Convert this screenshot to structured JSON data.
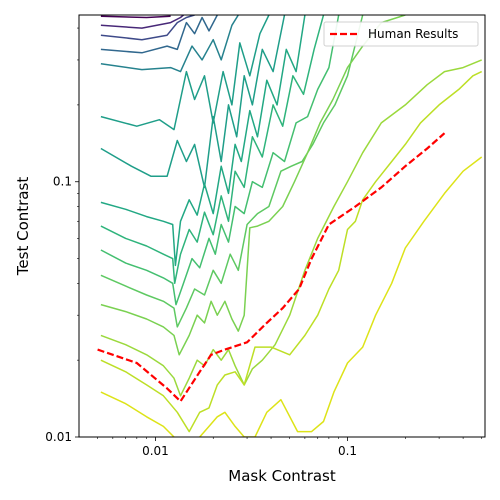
{
  "chart_data": {
    "type": "line",
    "xlabel": "Mask Contrast",
    "ylabel": "Test Contrast",
    "xscale": "log",
    "yscale": "log",
    "xlim": [
      0.004,
      0.52
    ],
    "ylim": [
      0.01,
      0.45
    ],
    "xticks": [
      {
        "value": 0.01,
        "label": "0.01"
      },
      {
        "value": 0.1,
        "label": "0.1"
      }
    ],
    "yticks": [
      {
        "value": 0.01,
        "label": "0.01"
      },
      {
        "value": 0.1,
        "label": "0.1"
      }
    ],
    "legend_position": "top-right",
    "grid": false,
    "series": [
      {
        "name": "Human Results",
        "style": "dashed",
        "color": "#ff0000",
        "x": [
          0.005,
          0.008,
          0.0115,
          0.0135,
          0.017,
          0.0195,
          0.023,
          0.03,
          0.038,
          0.046,
          0.056,
          0.065,
          0.08,
          0.11,
          0.15,
          0.2,
          0.26,
          0.32
        ],
        "y": [
          0.022,
          0.0195,
          0.0155,
          0.0138,
          0.018,
          0.021,
          0.022,
          0.0235,
          0.028,
          0.032,
          0.038,
          0.05,
          0.068,
          0.08,
          0.095,
          0.115,
          0.135,
          0.155
        ]
      }
    ],
    "contours": [
      {
        "color": "#440154",
        "x": [
          0.0052,
          0.009,
          0.012
        ],
        "y": [
          0.445,
          0.44,
          0.445
        ]
      },
      {
        "color": "#482878",
        "x": [
          0.0052,
          0.0085,
          0.012,
          0.0135,
          0.014
        ],
        "y": [
          0.41,
          0.4,
          0.42,
          0.44,
          0.45
        ]
      },
      {
        "color": "#3e4a89",
        "x": [
          0.0052,
          0.0085,
          0.0115,
          0.013,
          0.0145,
          0.016
        ],
        "y": [
          0.375,
          0.36,
          0.375,
          0.42,
          0.44,
          0.45
        ]
      },
      {
        "color": "#31688e",
        "x": [
          0.0052,
          0.0085,
          0.0115,
          0.013,
          0.0145,
          0.016,
          0.0175,
          0.019,
          0.021
        ],
        "y": [
          0.33,
          0.32,
          0.34,
          0.33,
          0.42,
          0.38,
          0.44,
          0.39,
          0.45
        ]
      },
      {
        "color": "#26828e",
        "x": [
          0.0052,
          0.0085,
          0.012,
          0.0135,
          0.0155,
          0.0175,
          0.02,
          0.022,
          0.025,
          0.027
        ],
        "y": [
          0.29,
          0.275,
          0.28,
          0.27,
          0.34,
          0.3,
          0.36,
          0.3,
          0.41,
          0.45
        ]
      },
      {
        "color": "#1f9e89",
        "x": [
          0.0052,
          0.008,
          0.0105,
          0.0125,
          0.0145,
          0.016,
          0.018,
          0.02,
          0.0225,
          0.025,
          0.0275,
          0.031,
          0.035,
          0.039
        ],
        "y": [
          0.18,
          0.165,
          0.175,
          0.16,
          0.27,
          0.21,
          0.26,
          0.17,
          0.27,
          0.2,
          0.35,
          0.26,
          0.38,
          0.45
        ]
      },
      {
        "color": "#1f9e89",
        "x": [
          0.0052,
          0.0075,
          0.0095,
          0.0115,
          0.013,
          0.0145,
          0.016,
          0.018,
          0.02,
          0.022,
          0.024,
          0.0265,
          0.029,
          0.032,
          0.036,
          0.041,
          0.047
        ],
        "y": [
          0.135,
          0.115,
          0.105,
          0.105,
          0.145,
          0.12,
          0.14,
          0.095,
          0.18,
          0.12,
          0.2,
          0.15,
          0.26,
          0.2,
          0.33,
          0.27,
          0.45
        ]
      },
      {
        "color": "#22a884",
        "x": [
          0.0052,
          0.007,
          0.009,
          0.011,
          0.0123,
          0.0127,
          0.0135,
          0.015,
          0.0165,
          0.018,
          0.02,
          0.022,
          0.024,
          0.026,
          0.028,
          0.031,
          0.034,
          0.038,
          0.043,
          0.048,
          0.054,
          0.06
        ],
        "y": [
          0.083,
          0.078,
          0.073,
          0.07,
          0.068,
          0.047,
          0.07,
          0.085,
          0.074,
          0.098,
          0.075,
          0.115,
          0.09,
          0.14,
          0.12,
          0.19,
          0.15,
          0.25,
          0.2,
          0.33,
          0.27,
          0.45
        ]
      },
      {
        "color": "#2fb47c",
        "x": [
          0.0052,
          0.007,
          0.009,
          0.011,
          0.0123,
          0.0126,
          0.0135,
          0.015,
          0.0165,
          0.018,
          0.02,
          0.022,
          0.024,
          0.026,
          0.029,
          0.032,
          0.036,
          0.041,
          0.046,
          0.052,
          0.059,
          0.067,
          0.075
        ],
        "y": [
          0.067,
          0.06,
          0.056,
          0.052,
          0.05,
          0.04,
          0.052,
          0.065,
          0.058,
          0.076,
          0.062,
          0.088,
          0.07,
          0.11,
          0.095,
          0.15,
          0.125,
          0.2,
          0.165,
          0.26,
          0.22,
          0.33,
          0.45
        ]
      },
      {
        "color": "#44bf70",
        "x": [
          0.0052,
          0.007,
          0.009,
          0.011,
          0.0123,
          0.0128,
          0.014,
          0.0155,
          0.017,
          0.019,
          0.0205,
          0.022,
          0.024,
          0.026,
          0.029,
          0.032,
          0.036,
          0.041,
          0.047,
          0.054,
          0.062,
          0.07,
          0.08,
          0.09
        ],
        "y": [
          0.054,
          0.048,
          0.045,
          0.042,
          0.04,
          0.033,
          0.04,
          0.05,
          0.046,
          0.06,
          0.052,
          0.068,
          0.058,
          0.08,
          0.075,
          0.1,
          0.095,
          0.13,
          0.12,
          0.17,
          0.18,
          0.23,
          0.28,
          0.45
        ]
      },
      {
        "color": "#5ec962",
        "x": [
          0.0052,
          0.007,
          0.009,
          0.011,
          0.0125,
          0.013,
          0.0145,
          0.016,
          0.018,
          0.02,
          0.022,
          0.0245,
          0.027,
          0.03,
          0.034,
          0.039,
          0.045,
          0.051,
          0.058,
          0.066,
          0.075,
          0.086,
          0.1,
          0.12
        ],
        "y": [
          0.043,
          0.039,
          0.036,
          0.034,
          0.032,
          0.027,
          0.032,
          0.038,
          0.036,
          0.045,
          0.04,
          0.052,
          0.045,
          0.068,
          0.075,
          0.08,
          0.11,
          0.115,
          0.12,
          0.14,
          0.17,
          0.2,
          0.26,
          0.45
        ]
      },
      {
        "color": "#7ad151",
        "x": [
          0.0052,
          0.007,
          0.009,
          0.011,
          0.0125,
          0.0133,
          0.015,
          0.0165,
          0.018,
          0.0195,
          0.021,
          0.023,
          0.025,
          0.027,
          0.029,
          0.031,
          0.034,
          0.039,
          0.046,
          0.053,
          0.062,
          0.072,
          0.084,
          0.1,
          0.12,
          0.15,
          0.2
        ],
        "y": [
          0.033,
          0.031,
          0.029,
          0.027,
          0.025,
          0.021,
          0.025,
          0.03,
          0.028,
          0.034,
          0.03,
          0.034,
          0.029,
          0.026,
          0.03,
          0.066,
          0.067,
          0.07,
          0.08,
          0.1,
          0.13,
          0.17,
          0.21,
          0.28,
          0.34,
          0.42,
          0.45
        ]
      },
      {
        "color": "#9bd93c",
        "x": [
          0.0052,
          0.007,
          0.009,
          0.011,
          0.0125,
          0.0135,
          0.015,
          0.0165,
          0.018,
          0.02,
          0.022,
          0.024,
          0.026,
          0.029,
          0.032,
          0.036,
          0.042,
          0.05,
          0.06,
          0.07,
          0.085,
          0.1,
          0.12,
          0.15,
          0.2,
          0.26,
          0.32,
          0.4,
          0.5
        ],
        "y": [
          0.025,
          0.023,
          0.021,
          0.019,
          0.017,
          0.0145,
          0.017,
          0.02,
          0.019,
          0.022,
          0.02,
          0.022,
          0.019,
          0.016,
          0.0185,
          0.02,
          0.023,
          0.03,
          0.045,
          0.06,
          0.08,
          0.1,
          0.13,
          0.17,
          0.2,
          0.24,
          0.27,
          0.28,
          0.3
        ]
      },
      {
        "color": "#bddf26",
        "x": [
          0.0052,
          0.007,
          0.009,
          0.011,
          0.013,
          0.015,
          0.017,
          0.019,
          0.021,
          0.023,
          0.026,
          0.029,
          0.033,
          0.04,
          0.05,
          0.06,
          0.07,
          0.08,
          0.09,
          0.1,
          0.11,
          0.12,
          0.14,
          0.17,
          0.2,
          0.24,
          0.3,
          0.38,
          0.45,
          0.5
        ],
        "y": [
          0.02,
          0.018,
          0.016,
          0.0145,
          0.0125,
          0.0105,
          0.0125,
          0.013,
          0.016,
          0.0175,
          0.018,
          0.016,
          0.0225,
          0.0225,
          0.021,
          0.025,
          0.03,
          0.038,
          0.045,
          0.065,
          0.07,
          0.085,
          0.1,
          0.12,
          0.14,
          0.17,
          0.2,
          0.23,
          0.26,
          0.27
        ]
      },
      {
        "color": "#dde318",
        "x": [
          0.0052,
          0.007,
          0.009,
          0.011,
          0.0125,
          0.014,
          0.0155,
          0.017,
          0.019,
          0.021,
          0.023,
          0.026,
          0.029,
          0.033,
          0.038,
          0.045,
          0.055,
          0.065,
          0.075,
          0.085,
          0.1,
          0.12,
          0.14,
          0.17,
          0.2,
          0.25,
          0.32,
          0.4,
          0.5
        ],
        "y": [
          0.015,
          0.0135,
          0.012,
          0.011,
          0.01,
          0.009,
          0.0095,
          0.01,
          0.011,
          0.012,
          0.0125,
          0.011,
          0.01,
          0.01,
          0.0125,
          0.014,
          0.0105,
          0.0105,
          0.0115,
          0.015,
          0.0195,
          0.0225,
          0.03,
          0.04,
          0.055,
          0.07,
          0.09,
          0.11,
          0.125
        ]
      }
    ]
  }
}
